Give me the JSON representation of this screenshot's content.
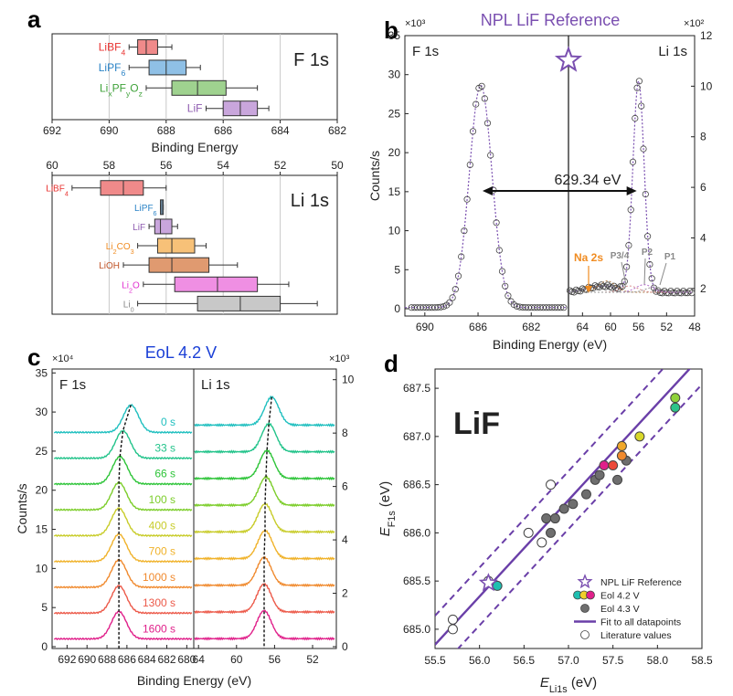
{
  "panels": {
    "a": {
      "letter": "a"
    },
    "b": {
      "letter": "b",
      "title": "NPL LiF Reference",
      "left_label": "F 1s",
      "right_label": "Li 1s",
      "left_mult": "×10³",
      "right_mult": "×10²",
      "sep_label": "629.34 eV",
      "annotations": {
        "na2s": "Na 2s",
        "p34": "P3/4",
        "p2": "P2",
        "p1": "P1"
      }
    },
    "c": {
      "letter": "c",
      "title": "EoL 4.2 V",
      "left_label": "F 1s",
      "right_label": "Li 1s",
      "left_mult": "×10⁴",
      "right_mult": "×10³"
    },
    "d": {
      "letter": "d",
      "big_label": "LiF"
    }
  },
  "chart_data": [
    {
      "panel": "a-top",
      "type": "boxplot",
      "title": "F 1s",
      "xlabel": "Binding Energy",
      "xlim": [
        692,
        682
      ],
      "xticks": [
        692,
        690,
        688,
        686,
        684,
        682
      ],
      "boxes": [
        {
          "label": "LiBF",
          "sub": "4",
          "color": "#e8312f",
          "fill": "#f08a8a",
          "whisk": [
            689.3,
            687.8
          ],
          "q": [
            689.0,
            688.3
          ],
          "med": 688.7
        },
        {
          "label": "LiPF",
          "sub": "6",
          "color": "#2a83c6",
          "fill": "#8fc0e6",
          "whisk": [
            689.3,
            686.8
          ],
          "q": [
            688.6,
            687.3
          ],
          "med": 688.0
        },
        {
          "label": "Li",
          "label_full": "LixPFyOz",
          "color": "#3fa23a",
          "fill": "#9fd28f",
          "whisk": [
            688.7,
            684.8
          ],
          "q": [
            687.8,
            685.9
          ],
          "med": 686.9
        },
        {
          "label": "LiF",
          "color": "#8e5cb0",
          "fill": "#c9a6dc",
          "whisk": [
            686.6,
            684.4
          ],
          "q": [
            686.0,
            684.8
          ],
          "med": 685.4
        }
      ]
    },
    {
      "panel": "a-bottom",
      "type": "boxplot",
      "title": "Li 1s",
      "xlim": [
        60,
        50
      ],
      "xticks": [
        60,
        58,
        56,
        54,
        52,
        50
      ],
      "boxes": [
        {
          "label": "LiBF",
          "sub": "4",
          "color": "#e8312f",
          "fill": "#f08a8a",
          "whisk": [
            59.3,
            56.0
          ],
          "q": [
            58.3,
            56.8
          ],
          "med": 57.5
        },
        {
          "label": "LiPF",
          "sub": "6",
          "color": "#2a83c6",
          "fill": "#8fc0e6",
          "whisk": [
            56.2,
            56.1
          ],
          "q": [
            56.2,
            56.1
          ],
          "med": 56.15
        },
        {
          "label": "LiF",
          "color": "#8e5cb0",
          "fill": "#c9a6dc",
          "whisk": [
            56.6,
            55.6
          ],
          "q": [
            56.4,
            55.8
          ],
          "med": 56.2
        },
        {
          "label": "Li",
          "sub": "2",
          "suffix": "CO",
          "sub2": "3",
          "color": "#f08c22",
          "fill": "#f7c178",
          "whisk": [
            57.0,
            54.6
          ],
          "q": [
            56.3,
            55.0
          ],
          "med": 55.8
        },
        {
          "label": "LiOH",
          "color": "#c0562a",
          "fill": "#e09a70",
          "whisk": [
            57.5,
            53.5
          ],
          "q": [
            56.6,
            54.5
          ],
          "med": 55.8
        },
        {
          "label": "Li",
          "sub": "2",
          "suffix": "O",
          "color": "#e030d0",
          "fill": "#ef8fe3",
          "whisk": [
            56.8,
            51.7
          ],
          "q": [
            55.7,
            52.8
          ],
          "med": 54.2
        },
        {
          "label": "Li",
          "sub": "0",
          "color": "#8a8a8a",
          "fill": "#c8c8c8",
          "whisk": [
            57.0,
            50.7
          ],
          "q": [
            54.9,
            52.0
          ],
          "med": 53.4
        }
      ]
    },
    {
      "panel": "b",
      "type": "line",
      "xlabel": "Binding Energy (eV)",
      "ylabel": "Counts/s",
      "left_xticks": [
        690,
        686,
        682
      ],
      "right_xticks": [
        64,
        60,
        56,
        52,
        48
      ],
      "left_yticks": [
        0,
        5,
        10,
        15,
        20,
        25,
        30,
        35
      ],
      "right_yticks": [
        2,
        4,
        6,
        8,
        10,
        12
      ],
      "f1s_peak": {
        "center": 685.8,
        "height": 28.5
      },
      "li1s_peak": {
        "center": 56.0,
        "height": 10.2
      }
    },
    {
      "panel": "c",
      "type": "line",
      "xlabel": "Binding Energy (eV)",
      "ylabel": "Counts/s",
      "left_xticks": [
        692,
        690,
        688,
        686,
        684,
        682,
        680
      ],
      "right_xticks": [
        64,
        60,
        56,
        52
      ],
      "left_yticks": [
        0,
        5,
        10,
        15,
        20,
        25,
        30,
        35
      ],
      "right_yticks": [
        0,
        2,
        4,
        6,
        8,
        10
      ],
      "series": [
        {
          "name": "0 s",
          "color": "#1fbfbf",
          "f_center": 685.6,
          "li_center": 56.3
        },
        {
          "name": "33 s",
          "color": "#22c38a",
          "f_center": 686.4,
          "li_center": 56.6
        },
        {
          "name": "66 s",
          "color": "#2dc438",
          "f_center": 686.7,
          "li_center": 56.8
        },
        {
          "name": "100 s",
          "color": "#7ccd2a",
          "f_center": 686.8,
          "li_center": 56.9
        },
        {
          "name": "400 s",
          "color": "#c8cc2a",
          "f_center": 686.8,
          "li_center": 57.0
        },
        {
          "name": "700 s",
          "color": "#f0b22a",
          "f_center": 686.8,
          "li_center": 57.0
        },
        {
          "name": "1000 s",
          "color": "#f08a2e",
          "f_center": 686.8,
          "li_center": 57.1
        },
        {
          "name": "1300 s",
          "color": "#ec5a4a",
          "f_center": 686.8,
          "li_center": 57.1
        },
        {
          "name": "1600 s",
          "color": "#e0208a",
          "f_center": 686.8,
          "li_center": 57.1
        }
      ]
    },
    {
      "panel": "d",
      "type": "scatter",
      "xlabel": "E",
      "xlabel_sub": "Li1s",
      "xlabel_unit": " (eV)",
      "ylabel": "E",
      "ylabel_sub": "F1s",
      "ylabel_unit": " (eV)",
      "xlim": [
        55.5,
        58.5
      ],
      "ylim": [
        684.8,
        687.7
      ],
      "xticks": [
        "55.5",
        "56.0",
        "56.5",
        "57.0",
        "57.5",
        "58.0",
        "58.5"
      ],
      "yticks": [
        "685.0",
        "685.5",
        "686.0",
        "686.5",
        "687.0",
        "687.5"
      ],
      "fit": {
        "slope": 1,
        "intercept": 629.34,
        "band": 0.3
      },
      "reference": {
        "x": 56.1,
        "y": 685.48
      },
      "eol42": [
        {
          "x": 56.2,
          "y": 685.45,
          "color": "#1fbfb0"
        },
        {
          "x": 57.4,
          "y": 686.7,
          "color": "#e0208a"
        },
        {
          "x": 57.5,
          "y": 686.7,
          "color": "#ec4a3a"
        },
        {
          "x": 57.6,
          "y": 686.8,
          "color": "#f08a2e"
        },
        {
          "x": 57.6,
          "y": 686.9,
          "color": "#f0a82a"
        },
        {
          "x": 57.8,
          "y": 687.0,
          "color": "#d8d82a"
        },
        {
          "x": 58.2,
          "y": 687.4,
          "color": "#8fd23a"
        },
        {
          "x": 58.2,
          "y": 687.3,
          "color": "#2dc48a"
        }
      ],
      "eol43": [
        {
          "x": 56.75,
          "y": 686.15
        },
        {
          "x": 56.85,
          "y": 686.15
        },
        {
          "x": 56.8,
          "y": 686.0
        },
        {
          "x": 56.95,
          "y": 686.25
        },
        {
          "x": 57.05,
          "y": 686.3
        },
        {
          "x": 57.2,
          "y": 686.4
        },
        {
          "x": 57.3,
          "y": 686.55
        },
        {
          "x": 57.35,
          "y": 686.6
        },
        {
          "x": 57.55,
          "y": 686.55
        },
        {
          "x": 57.65,
          "y": 686.75
        }
      ],
      "literature": [
        {
          "x": 55.7,
          "y": 685.0
        },
        {
          "x": 55.7,
          "y": 685.1
        },
        {
          "x": 56.1,
          "y": 685.5
        },
        {
          "x": 56.55,
          "y": 686.0
        },
        {
          "x": 56.7,
          "y": 685.9
        },
        {
          "x": 56.8,
          "y": 686.5
        }
      ],
      "legend": [
        {
          "key": "ref",
          "label": "NPL LiF Reference"
        },
        {
          "key": "eol42",
          "label": "Eol 4.2 V"
        },
        {
          "key": "eol43",
          "label": "Eol 4.3 V"
        },
        {
          "key": "fit",
          "label": "Fit to all datapoints"
        },
        {
          "key": "lit",
          "label": "Literature values"
        }
      ]
    }
  ]
}
